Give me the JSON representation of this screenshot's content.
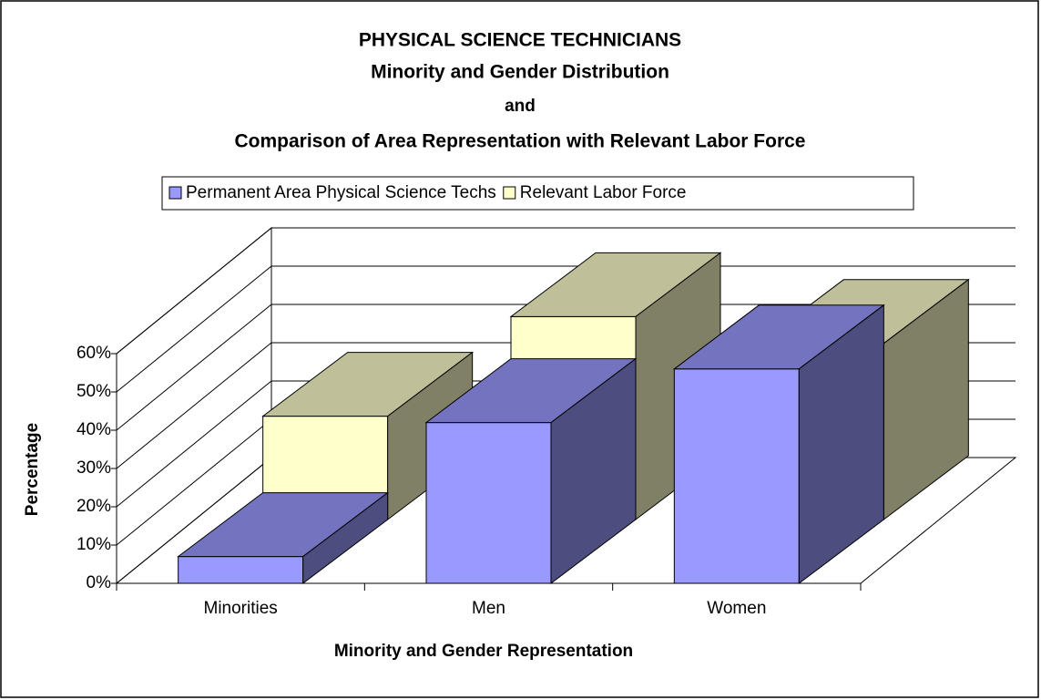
{
  "chart_data": {
    "type": "bar3d",
    "title": [
      "PHYSICAL SCIENCE TECHNICIANS",
      "Minority and Gender Distribution",
      "and",
      "Comparison of Area Representation with Relevant Labor Force"
    ],
    "xlabel": "Minority and Gender Representation",
    "ylabel": "Percentage",
    "categories": [
      "Minorities",
      "Men",
      "Women"
    ],
    "series": [
      {
        "name": "Permanent Area Physical Science Techs",
        "color": "#9999ff",
        "values": [
          7,
          42,
          56
        ]
      },
      {
        "name": "Relevant Labor Force",
        "color": "#ffffcc",
        "values": [
          27,
          53,
          46
        ]
      }
    ],
    "ylim": [
      0,
      60
    ],
    "yticks": [
      {
        "value": 0,
        "label": "0%"
      },
      {
        "value": 10,
        "label": "10%"
      },
      {
        "value": 20,
        "label": "20%"
      },
      {
        "value": 30,
        "label": "30%"
      },
      {
        "value": 40,
        "label": "40%"
      },
      {
        "value": 50,
        "label": "50%"
      },
      {
        "value": 60,
        "label": "60%"
      }
    ],
    "grid": true,
    "legend": "top"
  }
}
